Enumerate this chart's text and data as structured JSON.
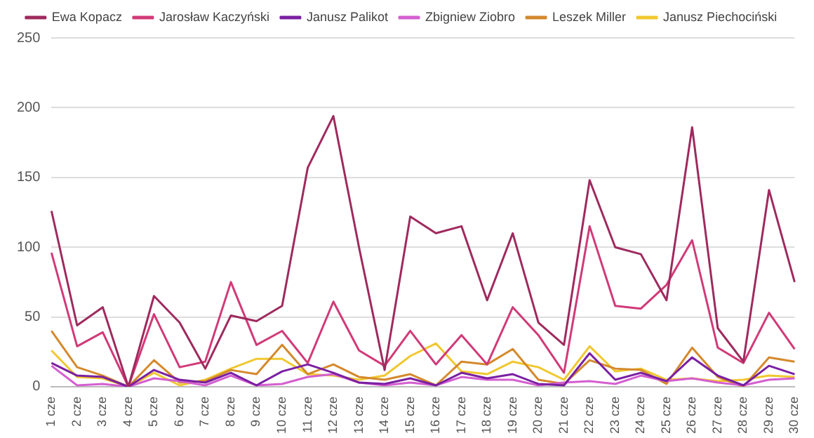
{
  "chart_data": {
    "type": "line",
    "categories": [
      "1 cze",
      "2 cze",
      "3 cze",
      "4 cze",
      "5 cze",
      "6 cze",
      "7 cze",
      "8 cze",
      "9 cze",
      "10 cze",
      "11 cze",
      "12 cze",
      "13 cze",
      "14 cze",
      "15 cze",
      "16 cze",
      "17 cze",
      "18 cze",
      "19 cze",
      "20 cze",
      "21 cze",
      "22 cze",
      "23 cze",
      "24 cze",
      "25 cze",
      "26 cze",
      "27 cze",
      "28 cze",
      "29 cze",
      "30 cze"
    ],
    "series": [
      {
        "name": "Ewa Kopacz",
        "color": "#9e2a5e",
        "values": [
          126,
          44,
          57,
          0,
          65,
          46,
          13,
          51,
          47,
          58,
          157,
          194,
          100,
          12,
          122,
          110,
          115,
          62,
          110,
          46,
          30,
          148,
          100,
          95,
          62,
          186,
          42,
          18,
          141,
          75
        ]
      },
      {
        "name": "Jarosław Kaczyński",
        "color": "#d13a78",
        "values": [
          96,
          29,
          39,
          0,
          52,
          14,
          18,
          75,
          30,
          40,
          17,
          61,
          26,
          15,
          40,
          16,
          37,
          16,
          57,
          37,
          10,
          115,
          58,
          56,
          73,
          105,
          28,
          17,
          53,
          27
        ]
      },
      {
        "name": "Janusz Palikot",
        "color": "#7a1fa2",
        "values": [
          17,
          8,
          7,
          0,
          12,
          5,
          3,
          10,
          1,
          11,
          16,
          10,
          3,
          2,
          6,
          1,
          10,
          6,
          9,
          2,
          1,
          24,
          5,
          10,
          4,
          21,
          8,
          1,
          15,
          9
        ]
      },
      {
        "name": "Zbigniew Ziobro",
        "color": "#d45fd0",
        "values": [
          15,
          1,
          2,
          0,
          6,
          4,
          1,
          8,
          1,
          2,
          7,
          9,
          3,
          1,
          3,
          1,
          7,
          5,
          5,
          1,
          3,
          4,
          2,
          8,
          4,
          6,
          3,
          1,
          5,
          6
        ]
      },
      {
        "name": "Leszek Miller",
        "color": "#d4892c",
        "values": [
          40,
          14,
          8,
          0,
          19,
          3,
          4,
          12,
          9,
          30,
          9,
          16,
          7,
          5,
          9,
          1,
          18,
          16,
          27,
          5,
          2,
          19,
          13,
          12,
          2,
          28,
          7,
          0,
          21,
          18
        ]
      },
      {
        "name": "Janusz Piechociński",
        "color": "#f0c830",
        "values": [
          26,
          7,
          6,
          0,
          10,
          1,
          5,
          13,
          20,
          20,
          9,
          8,
          5,
          8,
          22,
          31,
          11,
          9,
          18,
          14,
          5,
          29,
          11,
          13,
          5,
          6,
          4,
          5,
          8,
          7
        ]
      }
    ],
    "ylim": [
      0,
      250
    ],
    "yticks": [
      0,
      50,
      100,
      150,
      200,
      250
    ],
    "grid": "y",
    "legend": "top",
    "marker": "none",
    "line_style": "solid"
  }
}
